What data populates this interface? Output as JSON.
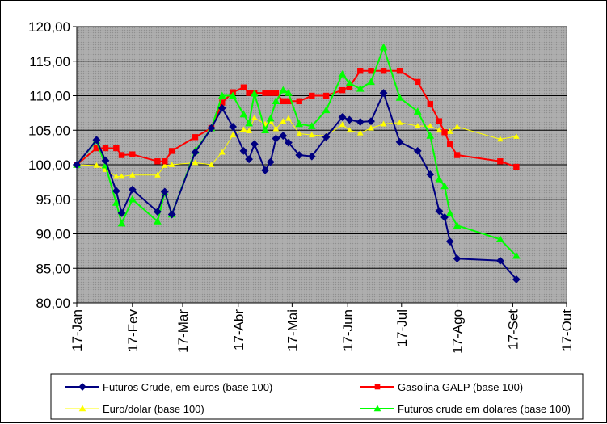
{
  "chart_data": {
    "type": "line",
    "title": "",
    "xlabel": "",
    "ylabel": "",
    "ylim": [
      80,
      120
    ],
    "yticks": [
      "80,00",
      "85,00",
      "90,00",
      "95,00",
      "100,00",
      "105,00",
      "110,00",
      "115,00",
      "120,00"
    ],
    "ytick_values": [
      80,
      85,
      90,
      95,
      100,
      105,
      110,
      115,
      120
    ],
    "xlim": [
      0,
      273
    ],
    "xticks": [
      "17-Jan",
      "17-Fev",
      "17-Mar",
      "17-Abr",
      "17-Mai",
      "17-Jun",
      "17-Jul",
      "17-Ago",
      "17-Set",
      "17-Out"
    ],
    "xtick_values": [
      0,
      31,
      59,
      90,
      120,
      151,
      181,
      212,
      243,
      273
    ],
    "grid": true,
    "legend_position": "bottom",
    "background_color": "#a6a6a6",
    "series": [
      {
        "name": "Futuros Crude, em euros (base 100)",
        "color": "#000080",
        "marker": "diamond",
        "points": [
          [
            0,
            100.0
          ],
          [
            11,
            103.6
          ],
          [
            16,
            100.6
          ],
          [
            22,
            96.2
          ],
          [
            25,
            93.0
          ],
          [
            31,
            96.4
          ],
          [
            45,
            93.2
          ],
          [
            49,
            96.1
          ],
          [
            53,
            92.8
          ],
          [
            66,
            101.8
          ],
          [
            75,
            105.3
          ],
          [
            81,
            108.2
          ],
          [
            87,
            105.5
          ],
          [
            93,
            102.0
          ],
          [
            96,
            100.8
          ],
          [
            99,
            103.0
          ],
          [
            105,
            99.2
          ],
          [
            108,
            100.4
          ],
          [
            111,
            103.8
          ],
          [
            115,
            104.2
          ],
          [
            118,
            103.2
          ],
          [
            124,
            101.4
          ],
          [
            131,
            101.2
          ],
          [
            139,
            104.0
          ],
          [
            148,
            106.9
          ],
          [
            152,
            106.5
          ],
          [
            158,
            106.2
          ],
          [
            164,
            106.3
          ],
          [
            171,
            110.4
          ],
          [
            180,
            103.3
          ],
          [
            190,
            102.0
          ],
          [
            197,
            98.6
          ],
          [
            202,
            93.3
          ],
          [
            205,
            92.4
          ],
          [
            208,
            88.9
          ],
          [
            212,
            86.4
          ],
          [
            236,
            86.1
          ],
          [
            245,
            83.4
          ]
        ]
      },
      {
        "name": "Gasolina GALP (base 100)",
        "color": "#ff0000",
        "marker": "square",
        "points": [
          [
            0,
            100.0
          ],
          [
            11,
            102.4
          ],
          [
            16,
            102.4
          ],
          [
            22,
            102.4
          ],
          [
            25,
            101.4
          ],
          [
            31,
            101.5
          ],
          [
            45,
            100.5
          ],
          [
            49,
            100.5
          ],
          [
            53,
            102.0
          ],
          [
            66,
            104.0
          ],
          [
            75,
            105.3
          ],
          [
            81,
            109.0
          ],
          [
            87,
            110.5
          ],
          [
            93,
            111.2
          ],
          [
            96,
            110.4
          ],
          [
            99,
            110.4
          ],
          [
            105,
            110.4
          ],
          [
            108,
            110.4
          ],
          [
            111,
            110.4
          ],
          [
            115,
            109.2
          ],
          [
            118,
            109.2
          ],
          [
            124,
            109.2
          ],
          [
            131,
            110.0
          ],
          [
            139,
            110.0
          ],
          [
            148,
            110.8
          ],
          [
            152,
            111.3
          ],
          [
            158,
            113.6
          ],
          [
            164,
            113.6
          ],
          [
            171,
            113.6
          ],
          [
            180,
            113.6
          ],
          [
            190,
            112.0
          ],
          [
            197,
            108.8
          ],
          [
            202,
            106.3
          ],
          [
            205,
            104.7
          ],
          [
            208,
            103.0
          ],
          [
            212,
            101.4
          ],
          [
            236,
            100.5
          ],
          [
            245,
            99.7
          ]
        ]
      },
      {
        "name": "Euro/dolar (base 100)",
        "color": "#ffff00",
        "marker": "triangle",
        "points": [
          [
            0,
            100.0
          ],
          [
            11,
            99.9
          ],
          [
            16,
            99.3
          ],
          [
            22,
            98.3
          ],
          [
            25,
            98.3
          ],
          [
            31,
            98.5
          ],
          [
            45,
            98.5
          ],
          [
            49,
            99.9
          ],
          [
            53,
            100.0
          ],
          [
            66,
            100.3
          ],
          [
            75,
            100.0
          ],
          [
            81,
            101.8
          ],
          [
            87,
            104.3
          ],
          [
            93,
            105.1
          ],
          [
            96,
            104.9
          ],
          [
            99,
            106.8
          ],
          [
            105,
            105.9
          ],
          [
            108,
            106.3
          ],
          [
            111,
            105.2
          ],
          [
            115,
            106.3
          ],
          [
            118,
            106.7
          ],
          [
            124,
            104.5
          ],
          [
            131,
            104.3
          ],
          [
            139,
            104.2
          ],
          [
            148,
            105.8
          ],
          [
            152,
            105.0
          ],
          [
            158,
            104.6
          ],
          [
            164,
            105.3
          ],
          [
            171,
            105.9
          ],
          [
            180,
            106.1
          ],
          [
            190,
            105.6
          ],
          [
            197,
            105.6
          ],
          [
            202,
            105.0
          ],
          [
            205,
            104.9
          ],
          [
            208,
            104.8
          ],
          [
            212,
            105.5
          ],
          [
            236,
            103.7
          ],
          [
            245,
            104.1
          ]
        ]
      },
      {
        "name": "Futuros crude em dolares (base 100)",
        "color": "#00ff00",
        "marker": "triangle",
        "points": [
          [
            0,
            100.0
          ],
          [
            11,
            103.5
          ],
          [
            16,
            99.9
          ],
          [
            22,
            94.5
          ],
          [
            25,
            91.5
          ],
          [
            31,
            95.0
          ],
          [
            45,
            91.8
          ],
          [
            49,
            96.0
          ],
          [
            53,
            92.8
          ],
          [
            66,
            102.0
          ],
          [
            75,
            105.3
          ],
          [
            81,
            110.0
          ],
          [
            87,
            110.0
          ],
          [
            93,
            107.3
          ],
          [
            96,
            106.0
          ],
          [
            99,
            110.3
          ],
          [
            105,
            105.0
          ],
          [
            108,
            106.7
          ],
          [
            111,
            109.2
          ],
          [
            115,
            110.8
          ],
          [
            118,
            110.4
          ],
          [
            124,
            105.9
          ],
          [
            131,
            105.6
          ],
          [
            139,
            107.9
          ],
          [
            148,
            113.1
          ],
          [
            152,
            111.8
          ],
          [
            158,
            111.0
          ],
          [
            164,
            112.0
          ],
          [
            171,
            117.0
          ],
          [
            180,
            109.7
          ],
          [
            190,
            107.7
          ],
          [
            197,
            104.2
          ],
          [
            202,
            97.9
          ],
          [
            205,
            96.9
          ],
          [
            208,
            93.0
          ],
          [
            212,
            91.2
          ],
          [
            236,
            89.2
          ],
          [
            245,
            86.8
          ]
        ]
      }
    ]
  }
}
